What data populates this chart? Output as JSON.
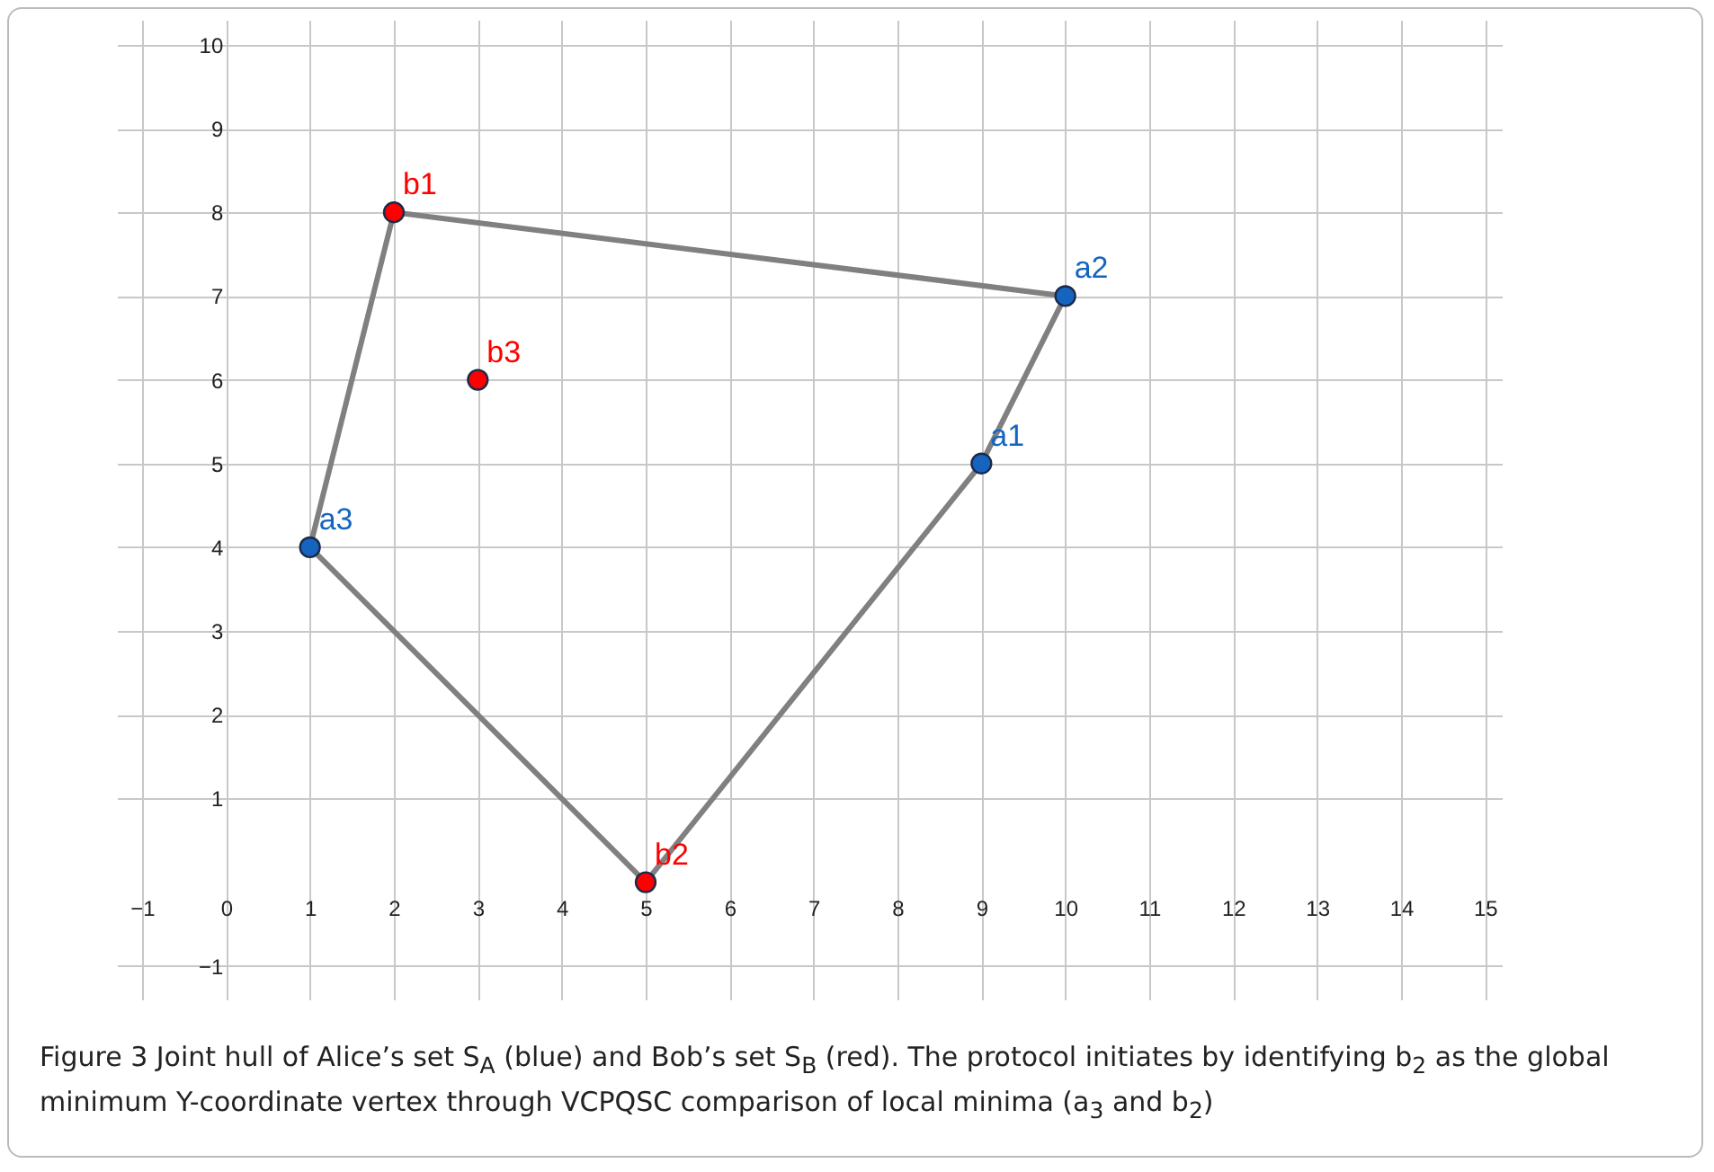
{
  "chart_data": {
    "type": "scatter",
    "xlim": [
      -1.3,
      15.2
    ],
    "ylim": [
      -1.4,
      10.3
    ],
    "xticks": [
      -1,
      0,
      1,
      2,
      3,
      4,
      5,
      6,
      7,
      8,
      9,
      10,
      11,
      12,
      13,
      14,
      15
    ],
    "yticks": [
      -1,
      1,
      2,
      3,
      4,
      5,
      6,
      7,
      8,
      9,
      10
    ],
    "grid": true,
    "marker": "circle",
    "series": [
      {
        "type": "line",
        "marker": "none",
        "color": "#808080",
        "x": [
          1,
          2,
          10
        ],
        "values": [
          4,
          8,
          7
        ]
      },
      {
        "type": "line",
        "marker": "none",
        "color": "#808080",
        "x": [
          1,
          5,
          9,
          10
        ],
        "values": [
          4,
          0,
          5,
          7
        ]
      },
      {
        "color": "#1565c0",
        "x": [
          9,
          10,
          1
        ],
        "values": [
          5,
          7,
          4
        ],
        "value_labels": [
          "a1",
          "a2",
          "a3"
        ]
      },
      {
        "color": "#ff0000",
        "x": [
          2,
          5,
          3
        ],
        "values": [
          8,
          0,
          6
        ],
        "value_labels": [
          "b1",
          "b2",
          "b3"
        ]
      }
    ],
    "annotations": [
      "Figure 3  Joint hull of Alice’s set S$_{A}$ (blue) and Bob’s set S$_{B}$ (red). The protocol initiates by identifying b$_{2}$ as the global minimum Y-coordinate vertex through VCPQSC comparison of local minima (a$_{3}$ and b$_{2}$)"
    ]
  }
}
